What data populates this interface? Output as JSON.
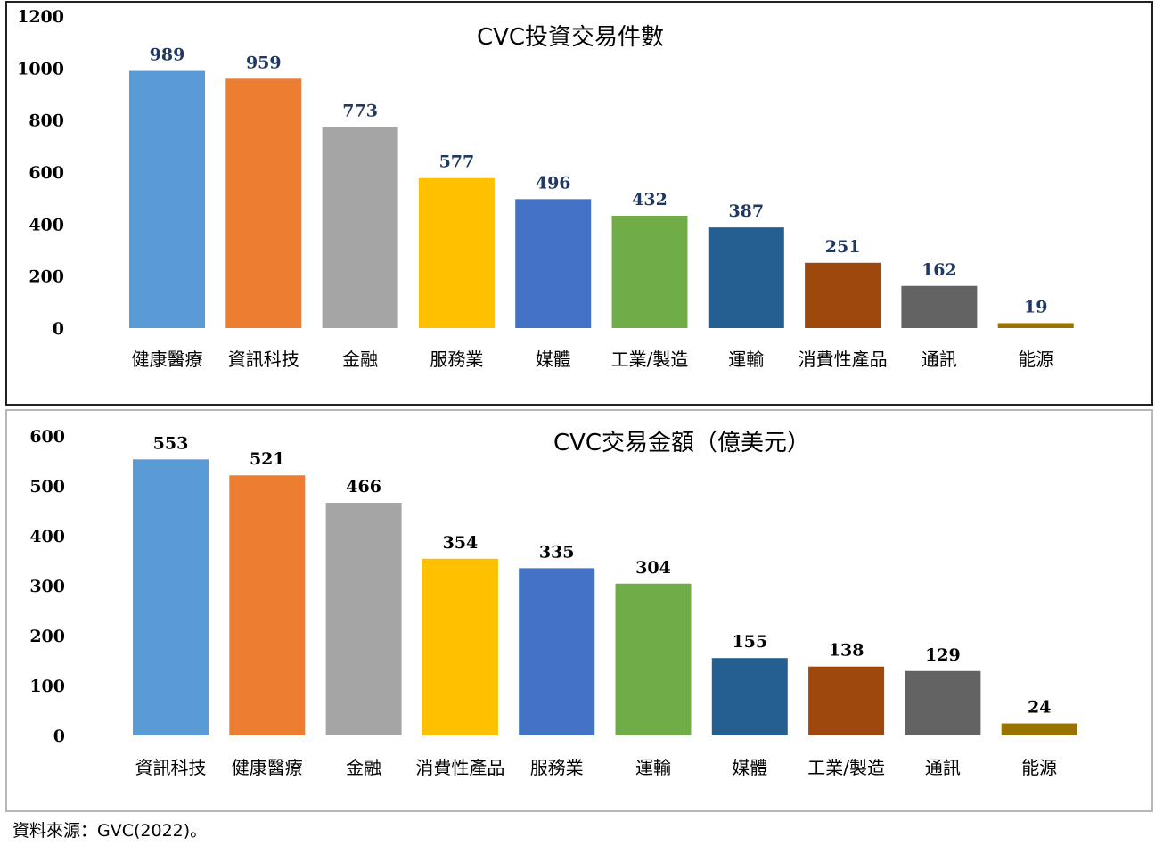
{
  "chart_data": [
    {
      "type": "bar",
      "title": "CVC投資交易件數",
      "categories": [
        "健康醫療",
        "資訊科技",
        "金融",
        "服務業",
        "媒體",
        "工業/製造",
        "運輸",
        "消費性產品",
        "通訊",
        "能源"
      ],
      "values": [
        989,
        959,
        773,
        577,
        496,
        432,
        387,
        251,
        162,
        19
      ],
      "colors": [
        "#5b9bd5",
        "#ed7d31",
        "#a5a5a5",
        "#ffc000",
        "#4472c4",
        "#70ad47",
        "#255e91",
        "#9e480e",
        "#636363",
        "#997300"
      ],
      "ylim": [
        0,
        1200
      ],
      "yticks": [
        "0",
        "200",
        "400",
        "600",
        "800",
        "1000",
        "1200"
      ],
      "data_labels": true,
      "value_label_color": "#1f3864",
      "grid": false,
      "legend": "none"
    },
    {
      "type": "bar",
      "title": "CVC交易金額（億美元）",
      "categories": [
        "資訊科技",
        "健康醫療",
        "金融",
        "消費性產品",
        "服務業",
        "運輸",
        "媒體",
        "工業/製造",
        "通訊",
        "能源"
      ],
      "values": [
        553,
        521,
        466,
        354,
        335,
        304,
        155,
        138,
        129,
        24
      ],
      "colors": [
        "#5b9bd5",
        "#ed7d31",
        "#a5a5a5",
        "#ffc000",
        "#4472c4",
        "#70ad47",
        "#255e91",
        "#9e480e",
        "#636363",
        "#997300"
      ],
      "ylim": [
        0,
        600
      ],
      "yticks": [
        "0",
        "100",
        "200",
        "300",
        "400",
        "500",
        "600"
      ],
      "data_labels": true,
      "value_label_color": "#000000",
      "grid": false,
      "legend": "none"
    }
  ],
  "source_note": "資料來源：GVC(2022)。"
}
